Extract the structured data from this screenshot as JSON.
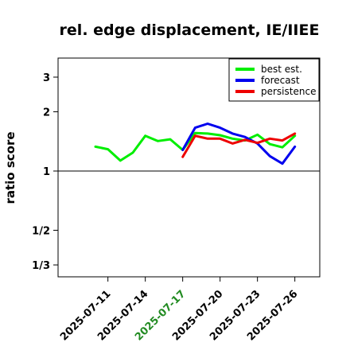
{
  "chart_data": {
    "type": "line",
    "title": "rel. edge displacement, IE/IIEE",
    "xlabel": "",
    "ylabel": "ratio score",
    "y_scale": "log",
    "ylim": [
      0.29,
      3.75
    ],
    "y_ticks": [
      {
        "value": 3,
        "label": "3"
      },
      {
        "value": 2,
        "label": "2"
      },
      {
        "value": 1,
        "label": "1"
      },
      {
        "value": 0.5,
        "label": "1/2"
      },
      {
        "value": 0.3333,
        "label": "1/3"
      }
    ],
    "reference_line": 1,
    "x_ticks": [
      {
        "date": "2025-07-11",
        "label": "2025-07-11",
        "color": "#000000"
      },
      {
        "date": "2025-07-14",
        "label": "2025-07-14",
        "color": "#000000"
      },
      {
        "date": "2025-07-17",
        "label": "2025-07-17",
        "color": "#228B22"
      },
      {
        "date": "2025-07-20",
        "label": "2025-07-20",
        "color": "#000000"
      },
      {
        "date": "2025-07-23",
        "label": "2025-07-23",
        "color": "#000000"
      },
      {
        "date": "2025-07-26",
        "label": "2025-07-26",
        "color": "#000000"
      }
    ],
    "xlim": [
      "2025-07-07",
      "2025-07-28"
    ],
    "legend_position": "top-right",
    "series": [
      {
        "name": "best est.",
        "color": "#00ee00",
        "points": [
          [
            "2025-07-10",
            1.33
          ],
          [
            "2025-07-11",
            1.29
          ],
          [
            "2025-07-12",
            1.13
          ],
          [
            "2025-07-13",
            1.24
          ],
          [
            "2025-07-14",
            1.51
          ],
          [
            "2025-07-15",
            1.42
          ],
          [
            "2025-07-16",
            1.45
          ],
          [
            "2025-07-17",
            1.28
          ],
          [
            "2025-07-18",
            1.56
          ],
          [
            "2025-07-19",
            1.55
          ],
          [
            "2025-07-20",
            1.52
          ],
          [
            "2025-07-21",
            1.46
          ],
          [
            "2025-07-22",
            1.43
          ],
          [
            "2025-07-23",
            1.53
          ],
          [
            "2025-07-24",
            1.37
          ],
          [
            "2025-07-25",
            1.32
          ],
          [
            "2025-07-26",
            1.51
          ]
        ]
      },
      {
        "name": "forecast",
        "color": "#0000ee",
        "points": [
          [
            "2025-07-17",
            1.28
          ],
          [
            "2025-07-18",
            1.66
          ],
          [
            "2025-07-19",
            1.74
          ],
          [
            "2025-07-20",
            1.66
          ],
          [
            "2025-07-21",
            1.55
          ],
          [
            "2025-07-22",
            1.49
          ],
          [
            "2025-07-23",
            1.38
          ],
          [
            "2025-07-24",
            1.19
          ],
          [
            "2025-07-25",
            1.09
          ],
          [
            "2025-07-26",
            1.33
          ]
        ]
      },
      {
        "name": "persistence",
        "color": "#ee0000",
        "points": [
          [
            "2025-07-17",
            1.18
          ],
          [
            "2025-07-18",
            1.51
          ],
          [
            "2025-07-19",
            1.46
          ],
          [
            "2025-07-20",
            1.46
          ],
          [
            "2025-07-21",
            1.38
          ],
          [
            "2025-07-22",
            1.44
          ],
          [
            "2025-07-23",
            1.39
          ],
          [
            "2025-07-24",
            1.46
          ],
          [
            "2025-07-25",
            1.43
          ],
          [
            "2025-07-26",
            1.55
          ]
        ]
      }
    ]
  }
}
